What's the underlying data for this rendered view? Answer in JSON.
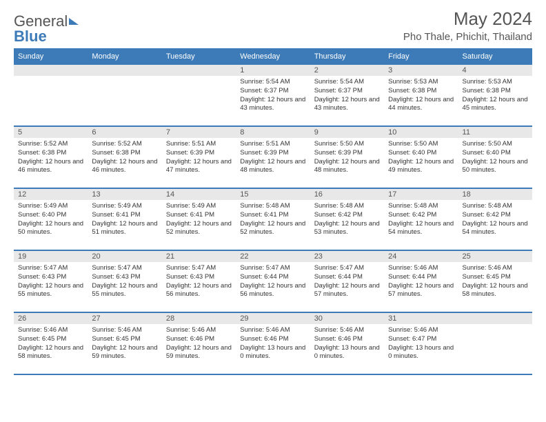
{
  "brand": {
    "part1": "General",
    "part2": "Blue"
  },
  "title": "May 2024",
  "location": "Pho Thale, Phichit, Thailand",
  "colors": {
    "accent": "#3d7bb8",
    "header_row_bg": "#e8e8e8",
    "text": "#333333"
  },
  "day_headers": [
    "Sunday",
    "Monday",
    "Tuesday",
    "Wednesday",
    "Thursday",
    "Friday",
    "Saturday"
  ],
  "weeks": [
    [
      null,
      null,
      null,
      {
        "n": "1",
        "sunrise": "5:54 AM",
        "sunset": "6:37 PM",
        "daylight": "12 hours and 43 minutes."
      },
      {
        "n": "2",
        "sunrise": "5:54 AM",
        "sunset": "6:37 PM",
        "daylight": "12 hours and 43 minutes."
      },
      {
        "n": "3",
        "sunrise": "5:53 AM",
        "sunset": "6:38 PM",
        "daylight": "12 hours and 44 minutes."
      },
      {
        "n": "4",
        "sunrise": "5:53 AM",
        "sunset": "6:38 PM",
        "daylight": "12 hours and 45 minutes."
      }
    ],
    [
      {
        "n": "5",
        "sunrise": "5:52 AM",
        "sunset": "6:38 PM",
        "daylight": "12 hours and 46 minutes."
      },
      {
        "n": "6",
        "sunrise": "5:52 AM",
        "sunset": "6:38 PM",
        "daylight": "12 hours and 46 minutes."
      },
      {
        "n": "7",
        "sunrise": "5:51 AM",
        "sunset": "6:39 PM",
        "daylight": "12 hours and 47 minutes."
      },
      {
        "n": "8",
        "sunrise": "5:51 AM",
        "sunset": "6:39 PM",
        "daylight": "12 hours and 48 minutes."
      },
      {
        "n": "9",
        "sunrise": "5:50 AM",
        "sunset": "6:39 PM",
        "daylight": "12 hours and 48 minutes."
      },
      {
        "n": "10",
        "sunrise": "5:50 AM",
        "sunset": "6:40 PM",
        "daylight": "12 hours and 49 minutes."
      },
      {
        "n": "11",
        "sunrise": "5:50 AM",
        "sunset": "6:40 PM",
        "daylight": "12 hours and 50 minutes."
      }
    ],
    [
      {
        "n": "12",
        "sunrise": "5:49 AM",
        "sunset": "6:40 PM",
        "daylight": "12 hours and 50 minutes."
      },
      {
        "n": "13",
        "sunrise": "5:49 AM",
        "sunset": "6:41 PM",
        "daylight": "12 hours and 51 minutes."
      },
      {
        "n": "14",
        "sunrise": "5:49 AM",
        "sunset": "6:41 PM",
        "daylight": "12 hours and 52 minutes."
      },
      {
        "n": "15",
        "sunrise": "5:48 AM",
        "sunset": "6:41 PM",
        "daylight": "12 hours and 52 minutes."
      },
      {
        "n": "16",
        "sunrise": "5:48 AM",
        "sunset": "6:42 PM",
        "daylight": "12 hours and 53 minutes."
      },
      {
        "n": "17",
        "sunrise": "5:48 AM",
        "sunset": "6:42 PM",
        "daylight": "12 hours and 54 minutes."
      },
      {
        "n": "18",
        "sunrise": "5:48 AM",
        "sunset": "6:42 PM",
        "daylight": "12 hours and 54 minutes."
      }
    ],
    [
      {
        "n": "19",
        "sunrise": "5:47 AM",
        "sunset": "6:43 PM",
        "daylight": "12 hours and 55 minutes."
      },
      {
        "n": "20",
        "sunrise": "5:47 AM",
        "sunset": "6:43 PM",
        "daylight": "12 hours and 55 minutes."
      },
      {
        "n": "21",
        "sunrise": "5:47 AM",
        "sunset": "6:43 PM",
        "daylight": "12 hours and 56 minutes."
      },
      {
        "n": "22",
        "sunrise": "5:47 AM",
        "sunset": "6:44 PM",
        "daylight": "12 hours and 56 minutes."
      },
      {
        "n": "23",
        "sunrise": "5:47 AM",
        "sunset": "6:44 PM",
        "daylight": "12 hours and 57 minutes."
      },
      {
        "n": "24",
        "sunrise": "5:46 AM",
        "sunset": "6:44 PM",
        "daylight": "12 hours and 57 minutes."
      },
      {
        "n": "25",
        "sunrise": "5:46 AM",
        "sunset": "6:45 PM",
        "daylight": "12 hours and 58 minutes."
      }
    ],
    [
      {
        "n": "26",
        "sunrise": "5:46 AM",
        "sunset": "6:45 PM",
        "daylight": "12 hours and 58 minutes."
      },
      {
        "n": "27",
        "sunrise": "5:46 AM",
        "sunset": "6:45 PM",
        "daylight": "12 hours and 59 minutes."
      },
      {
        "n": "28",
        "sunrise": "5:46 AM",
        "sunset": "6:46 PM",
        "daylight": "12 hours and 59 minutes."
      },
      {
        "n": "29",
        "sunrise": "5:46 AM",
        "sunset": "6:46 PM",
        "daylight": "13 hours and 0 minutes."
      },
      {
        "n": "30",
        "sunrise": "5:46 AM",
        "sunset": "6:46 PM",
        "daylight": "13 hours and 0 minutes."
      },
      {
        "n": "31",
        "sunrise": "5:46 AM",
        "sunset": "6:47 PM",
        "daylight": "13 hours and 0 minutes."
      },
      null
    ]
  ],
  "labels": {
    "sunrise": "Sunrise:",
    "sunset": "Sunset:",
    "daylight": "Daylight:"
  }
}
